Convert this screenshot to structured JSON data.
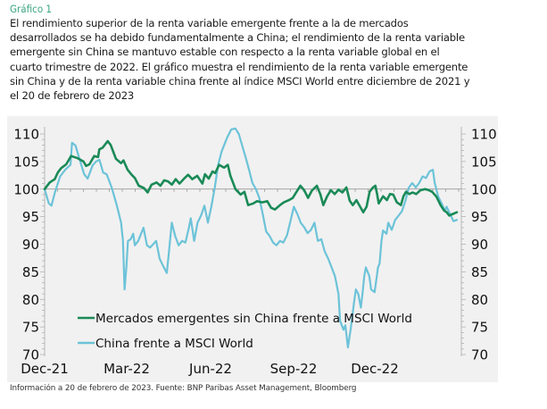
{
  "header": {
    "label": "Gráfico 1",
    "title": "El rendimiento superior de la renta variable emergente frente a la de mercados desarrollados se ha debido fundamentalmente a China; el rendimiento de la renta variable emergente sin China se mantuvo estable con respecto a la renta variable global en el cuarto trimestre de 2022. El gráfico muestra el rendimiento de la renta variable emergente sin China y de la renta variable china frente al índice MSCI World entre diciembre de 2021 y el 20 de febrero de 2023"
  },
  "footer": {
    "source": "Información a 20 de febrero de 2023. Fuente: BNP Paribas Asset Management, Bloomberg"
  },
  "chart_data": {
    "type": "line",
    "title": "",
    "xlabel": "",
    "ylabel": "",
    "x_unit": "months since Dec-2021",
    "xlim": [
      0,
      14.7
    ],
    "ylim": [
      70,
      110
    ],
    "yticks": [
      70,
      75,
      80,
      85,
      90,
      95,
      100,
      105,
      110
    ],
    "ytick_labels": [
      "70",
      "75",
      "80",
      "85",
      "90",
      "95",
      "100",
      "105",
      "110"
    ],
    "xticks": [
      0,
      3,
      6,
      9,
      12
    ],
    "xtick_labels": [
      "Dec-21",
      "Mar-22",
      "Jun-22",
      "Sep-22",
      "Dec-22"
    ],
    "reference_line": 100,
    "dual_y_axis": true,
    "grid": false,
    "legend_position": "bottom-left",
    "colors": {
      "em_ex_china": "#1a8a57",
      "china": "#6cc3d8",
      "background": "#f1f1f1"
    },
    "series": [
      {
        "name": "Mercados emergentes sin China frente a MSCI World",
        "key": "em_ex_china",
        "points": [
          [
            0.0,
            100.0
          ],
          [
            0.2,
            101.2
          ],
          [
            0.4,
            101.8
          ],
          [
            0.52,
            103.0
          ],
          [
            0.65,
            103.8
          ],
          [
            0.85,
            104.5
          ],
          [
            1.04,
            106.0
          ],
          [
            1.3,
            105.6
          ],
          [
            1.53,
            105.0
          ],
          [
            1.63,
            104.2
          ],
          [
            1.76,
            104.5
          ],
          [
            1.95,
            106.0
          ],
          [
            2.1,
            105.8
          ],
          [
            2.15,
            107.2
          ],
          [
            2.28,
            107.5
          ],
          [
            2.48,
            108.7
          ],
          [
            2.6,
            108.0
          ],
          [
            2.8,
            105.5
          ],
          [
            3.0,
            104.7
          ],
          [
            3.1,
            105.2
          ],
          [
            3.26,
            103.5
          ],
          [
            3.42,
            102.6
          ],
          [
            3.55,
            102.0
          ],
          [
            3.7,
            100.6
          ],
          [
            3.9,
            100.2
          ],
          [
            4.05,
            99.4
          ],
          [
            4.2,
            100.8
          ],
          [
            4.4,
            101.2
          ],
          [
            4.55,
            100.6
          ],
          [
            4.7,
            101.6
          ],
          [
            4.85,
            101.4
          ],
          [
            5.0,
            100.8
          ],
          [
            5.15,
            101.8
          ],
          [
            5.3,
            101.0
          ],
          [
            5.5,
            102.0
          ],
          [
            5.64,
            102.6
          ],
          [
            5.8,
            101.8
          ],
          [
            6.0,
            102.4
          ],
          [
            6.2,
            101.0
          ],
          [
            6.3,
            102.7
          ],
          [
            6.45,
            101.9
          ],
          [
            6.6,
            103.2
          ],
          [
            6.7,
            102.9
          ],
          [
            6.86,
            104.4
          ],
          [
            7.05,
            103.9
          ],
          [
            7.2,
            104.4
          ],
          [
            7.3,
            102.4
          ],
          [
            7.5,
            100.0
          ],
          [
            7.7,
            99.0
          ],
          [
            7.85,
            99.5
          ],
          [
            8.0,
            97.1
          ],
          [
            8.2,
            97.4
          ],
          [
            8.35,
            97.8
          ],
          [
            8.55,
            97.6
          ],
          [
            8.75,
            97.8
          ],
          [
            8.9,
            96.6
          ],
          [
            9.05,
            96.3
          ],
          [
            9.25,
            97.1
          ],
          [
            9.4,
            97.6
          ],
          [
            9.6,
            98.0
          ],
          [
            9.75,
            98.4
          ],
          [
            9.9,
            99.5
          ],
          [
            10.05,
            100.6
          ],
          [
            10.2,
            99.8
          ],
          [
            10.35,
            98.4
          ],
          [
            10.5,
            99.7
          ],
          [
            10.7,
            100.6
          ],
          [
            10.84,
            99.0
          ],
          [
            10.95,
            97.1
          ],
          [
            11.1,
            98.7
          ],
          [
            11.25,
            99.8
          ],
          [
            11.4,
            99.1
          ],
          [
            11.55,
            99.9
          ],
          [
            11.7,
            99.4
          ],
          [
            11.86,
            100.3
          ],
          [
            11.99,
            97.9
          ],
          [
            12.11,
            97.1
          ],
          [
            12.25,
            98.0
          ],
          [
            12.4,
            96.8
          ],
          [
            12.52,
            95.8
          ],
          [
            12.65,
            96.8
          ],
          [
            12.77,
            99.5
          ],
          [
            12.9,
            100.3
          ],
          [
            13.0,
            100.6
          ],
          [
            13.07,
            99.0
          ],
          [
            13.13,
            97.4
          ],
          [
            13.3,
            98.7
          ],
          [
            13.45,
            98.0
          ],
          [
            13.57,
            99.1
          ],
          [
            13.7,
            99.0
          ],
          [
            13.84,
            97.6
          ],
          [
            14.0,
            97.1
          ],
          [
            14.1,
            98.7
          ],
          [
            14.2,
            99.5
          ],
          [
            14.33,
            99.1
          ],
          [
            14.46,
            99.4
          ],
          [
            14.6,
            99.1
          ],
          [
            14.77,
            99.8
          ],
          [
            14.95,
            100.0
          ],
          [
            15.1,
            99.8
          ],
          [
            15.23,
            99.5
          ],
          [
            15.4,
            98.6
          ],
          [
            15.56,
            97.1
          ],
          [
            15.7,
            96.1
          ],
          [
            15.8,
            95.8
          ],
          [
            15.9,
            95.2
          ],
          [
            16.05,
            95.5
          ],
          [
            16.2,
            95.8
          ]
        ]
      },
      {
        "name": "China frente a MSCI World",
        "key": "china",
        "points": [
          [
            0.0,
            100.0
          ],
          [
            0.16,
            97.4
          ],
          [
            0.26,
            97.0
          ],
          [
            0.39,
            99.4
          ],
          [
            0.59,
            102.3
          ],
          [
            0.78,
            103.5
          ],
          [
            0.98,
            104.4
          ],
          [
            1.04,
            108.4
          ],
          [
            1.17,
            107.9
          ],
          [
            1.37,
            104.7
          ],
          [
            1.5,
            102.7
          ],
          [
            1.63,
            101.9
          ],
          [
            1.82,
            104.3
          ],
          [
            1.95,
            105.0
          ],
          [
            2.08,
            105.3
          ],
          [
            2.22,
            103.0
          ],
          [
            2.35,
            102.7
          ],
          [
            2.48,
            101.1
          ],
          [
            2.54,
            100.3
          ],
          [
            2.61,
            99.2
          ],
          [
            2.74,
            97.0
          ],
          [
            2.9,
            93.9
          ],
          [
            2.97,
            90.6
          ],
          [
            3.03,
            81.8
          ],
          [
            3.1,
            85.8
          ],
          [
            3.16,
            90.6
          ],
          [
            3.26,
            90.9
          ],
          [
            3.36,
            91.9
          ],
          [
            3.42,
            89.8
          ],
          [
            3.55,
            90.6
          ],
          [
            3.75,
            93.0
          ],
          [
            3.88,
            89.8
          ],
          [
            4.0,
            89.4
          ],
          [
            4.23,
            90.6
          ],
          [
            4.36,
            87.4
          ],
          [
            4.5,
            86.0
          ],
          [
            4.63,
            84.8
          ],
          [
            4.69,
            87.4
          ],
          [
            4.82,
            93.9
          ],
          [
            4.95,
            91.5
          ],
          [
            5.08,
            89.8
          ],
          [
            5.21,
            90.6
          ],
          [
            5.34,
            90.3
          ],
          [
            5.47,
            93.0
          ],
          [
            5.54,
            94.7
          ],
          [
            5.67,
            90.6
          ],
          [
            5.8,
            93.9
          ],
          [
            5.93,
            95.2
          ],
          [
            6.06,
            97.0
          ],
          [
            6.19,
            93.9
          ],
          [
            6.32,
            96.8
          ],
          [
            6.45,
            100.3
          ],
          [
            6.58,
            104.4
          ],
          [
            6.71,
            106.8
          ],
          [
            6.91,
            109.2
          ],
          [
            7.07,
            110.8
          ],
          [
            7.23,
            111.0
          ],
          [
            7.36,
            110.0
          ],
          [
            7.49,
            107.9
          ],
          [
            7.62,
            105.8
          ],
          [
            7.75,
            103.5
          ],
          [
            7.88,
            101.1
          ],
          [
            8.01,
            100.0
          ],
          [
            8.14,
            98.4
          ],
          [
            8.27,
            95.5
          ],
          [
            8.4,
            92.3
          ],
          [
            8.53,
            91.5
          ],
          [
            8.66,
            90.3
          ],
          [
            8.79,
            89.8
          ],
          [
            8.92,
            90.6
          ],
          [
            9.05,
            90.3
          ],
          [
            9.19,
            91.6
          ],
          [
            9.32,
            94.2
          ],
          [
            9.45,
            96.8
          ],
          [
            9.58,
            95.5
          ],
          [
            9.71,
            93.9
          ],
          [
            9.84,
            93.1
          ],
          [
            9.97,
            92.0
          ],
          [
            10.1,
            92.6
          ],
          [
            10.23,
            93.9
          ],
          [
            10.36,
            90.6
          ],
          [
            10.49,
            90.9
          ],
          [
            10.62,
            88.7
          ],
          [
            10.75,
            87.4
          ],
          [
            10.88,
            85.8
          ],
          [
            11.01,
            84.2
          ],
          [
            11.14,
            81.0
          ],
          [
            11.2,
            76.1
          ],
          [
            11.33,
            74.5
          ],
          [
            11.4,
            75.3
          ],
          [
            11.5,
            71.3
          ],
          [
            11.6,
            74.5
          ],
          [
            11.73,
            79.4
          ],
          [
            11.8,
            81.8
          ],
          [
            11.89,
            81.0
          ],
          [
            11.99,
            78.5
          ],
          [
            12.05,
            81.0
          ],
          [
            12.12,
            84.2
          ],
          [
            12.18,
            85.8
          ],
          [
            12.31,
            84.2
          ],
          [
            12.38,
            81.8
          ],
          [
            12.51,
            81.3
          ],
          [
            12.57,
            83.4
          ],
          [
            12.64,
            85.8
          ],
          [
            12.7,
            86.5
          ],
          [
            12.77,
            90.6
          ],
          [
            12.83,
            92.5
          ],
          [
            12.96,
            91.9
          ],
          [
            13.03,
            93.9
          ],
          [
            13.16,
            92.6
          ],
          [
            13.29,
            94.4
          ],
          [
            13.42,
            95.2
          ],
          [
            13.55,
            96.0
          ],
          [
            13.68,
            97.9
          ],
          [
            13.81,
            100.3
          ],
          [
            13.94,
            101.1
          ],
          [
            14.07,
            100.3
          ],
          [
            14.2,
            101.1
          ],
          [
            14.33,
            102.3
          ],
          [
            14.46,
            102.0
          ],
          [
            14.59,
            103.2
          ],
          [
            14.72,
            103.5
          ],
          [
            14.79,
            101.1
          ],
          [
            14.92,
            98.7
          ],
          [
            15.05,
            97.4
          ],
          [
            15.18,
            96.1
          ],
          [
            15.24,
            96.8
          ],
          [
            15.37,
            95.5
          ],
          [
            15.5,
            94.2
          ],
          [
            15.63,
            94.4
          ]
        ]
      }
    ]
  }
}
